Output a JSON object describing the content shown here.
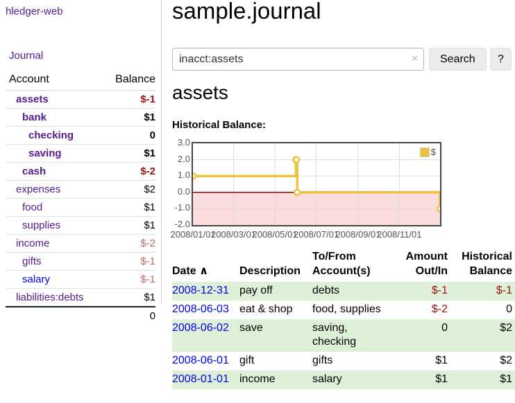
{
  "palette": {
    "link_purple": "#551a8b",
    "link_blue": "#0000ee",
    "negative_red": "#a01010",
    "negative_faded": "#bb6666",
    "text_black": "#000000",
    "row_green": "#def0d8",
    "series_gold": "#edc240",
    "negative_region_pink": "#fbdddd",
    "zero_line_red": "#a00000",
    "grid_gray": "#dcdcdc"
  },
  "sidebar": {
    "brand": "hledger-web",
    "nav_journal": "Journal",
    "accounts_table": {
      "account_header": "Account",
      "balance_header": "Balance",
      "rows": [
        {
          "name": "assets",
          "indent": 1,
          "balance": "$-1",
          "bold": true,
          "name_style": "purple",
          "balance_style": "negative"
        },
        {
          "name": "bank",
          "indent": 2,
          "balance": "$1",
          "bold": true,
          "name_style": "purple",
          "balance_style": "normal"
        },
        {
          "name": "checking",
          "indent": 3,
          "balance": "0",
          "bold": true,
          "name_style": "purple",
          "balance_style": "normal"
        },
        {
          "name": "saving",
          "indent": 3,
          "balance": "$1",
          "bold": true,
          "name_style": "purple",
          "balance_style": "normal"
        },
        {
          "name": "cash",
          "indent": 2,
          "balance": "$-2",
          "bold": true,
          "name_style": "purple",
          "balance_style": "negative"
        },
        {
          "name": "expenses",
          "indent": 1,
          "balance": "$2",
          "bold": false,
          "name_style": "purple",
          "balance_style": "normal"
        },
        {
          "name": "food",
          "indent": 2,
          "balance": "$1",
          "bold": false,
          "name_style": "purple",
          "balance_style": "normal"
        },
        {
          "name": "supplies",
          "indent": 2,
          "balance": "$1",
          "bold": false,
          "name_style": "purple",
          "balance_style": "normal"
        },
        {
          "name": "income",
          "indent": 1,
          "balance": "$-2",
          "bold": false,
          "name_style": "purple",
          "balance_style": "faded"
        },
        {
          "name": "gifts",
          "indent": 2,
          "balance": "$-1",
          "bold": false,
          "name_style": "purple",
          "balance_style": "faded"
        },
        {
          "name": "salary",
          "indent": 2,
          "balance": "$-1",
          "bold": false,
          "name_style": "blue",
          "balance_style": "faded"
        },
        {
          "name": "liabilities:debts",
          "indent": 1,
          "balance": "$1",
          "bold": false,
          "name_style": "purple",
          "balance_style": "normal"
        }
      ],
      "total": "0"
    }
  },
  "main": {
    "title": "sample.journal",
    "search": {
      "value": "inacct:assets",
      "clear_icon": "×",
      "button": "Search",
      "help": "?"
    },
    "account_heading": "assets",
    "chart_label": "Historical Balance:"
  },
  "chart_data": {
    "type": "line",
    "title": "Historical Balance",
    "step": true,
    "legend": "$",
    "legend_position": "top-right",
    "xrange": [
      "2008-01-01",
      "2008-12-31"
    ],
    "ylim": [
      -2,
      3
    ],
    "yticks": [
      "3.0",
      "2.0",
      "1.0",
      "0.0",
      "-1.0",
      "-2.0"
    ],
    "xticks": [
      "2008/01/01",
      "2008/03/01",
      "2008/05/01",
      "2008/07/01",
      "2008/09/01",
      "2008/11/01"
    ],
    "series": [
      {
        "name": "$",
        "color": "#edc240",
        "points": [
          {
            "date": "2008-01-01",
            "value": 1
          },
          {
            "date": "2008-06-01",
            "value": 2
          },
          {
            "date": "2008-06-02",
            "value": 2
          },
          {
            "date": "2008-06-03",
            "value": 0
          },
          {
            "date": "2008-12-31",
            "value": -1
          }
        ]
      }
    ],
    "grid": true,
    "negative_region_shaded": true
  },
  "register": {
    "headers": {
      "date": "Date",
      "description": "Description",
      "accounts": "To/From Account(s)",
      "amount": "Amount Out/In",
      "balance": "Historical Balance"
    },
    "sort_icon": "∧",
    "rows": [
      {
        "date": "2008-12-31",
        "description": "pay off",
        "accounts": "debts",
        "amount": "$-1",
        "amount_neg": true,
        "balance": "$-1",
        "balance_neg": true,
        "green": true
      },
      {
        "date": "2008-06-03",
        "description": "eat & shop",
        "accounts": "food, supplies",
        "amount": "$-2",
        "amount_neg": true,
        "balance": "0",
        "balance_neg": false,
        "green": false
      },
      {
        "date": "2008-06-02",
        "description": "save",
        "accounts": "saving, checking",
        "amount": "0",
        "amount_neg": false,
        "balance": "$2",
        "balance_neg": false,
        "green": true
      },
      {
        "date": "2008-06-01",
        "description": "gift",
        "accounts": "gifts",
        "amount": "$1",
        "amount_neg": false,
        "balance": "$2",
        "balance_neg": false,
        "green": false
      },
      {
        "date": "2008-01-01",
        "description": "income",
        "accounts": "salary",
        "amount": "$1",
        "amount_neg": false,
        "balance": "$1",
        "balance_neg": false,
        "green": true
      }
    ]
  }
}
